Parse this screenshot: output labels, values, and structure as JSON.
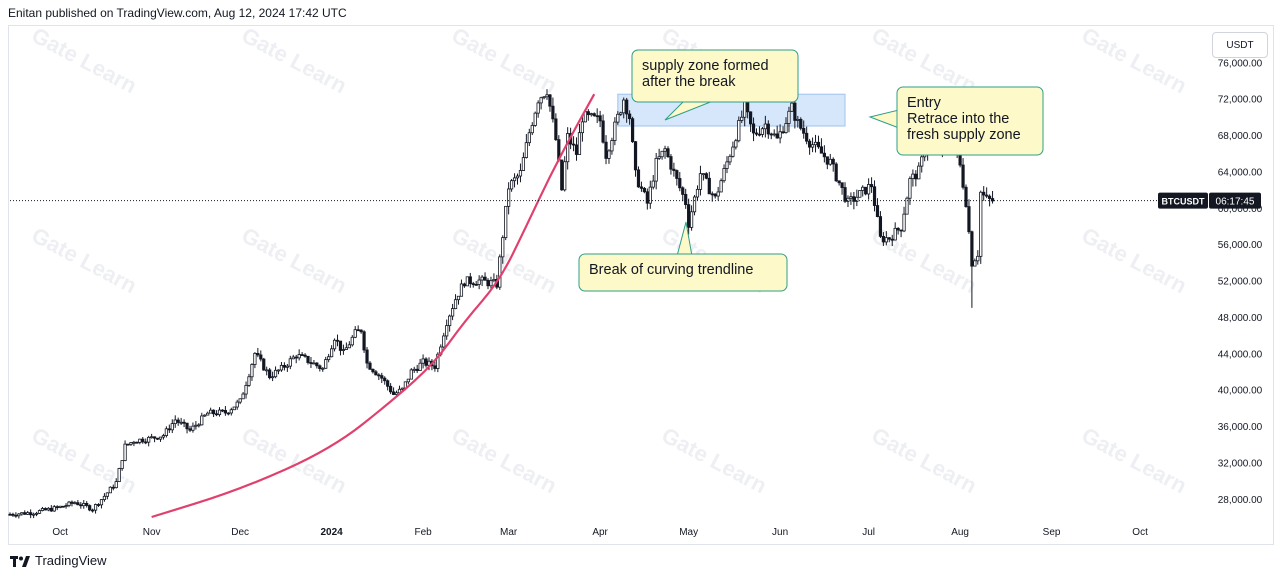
{
  "header": {
    "publisher_line": "Enitan published on TradingView.com, Aug 12, 2024 17:42 UTC"
  },
  "currency_button": "USDT",
  "footer": {
    "brand": "TradingView"
  },
  "watermark_text": "Gate Learn",
  "chart_data": {
    "type": "candlestick",
    "symbol_badge": "BTCUSDT",
    "countdown_badge": "06:17:45",
    "current_price": 60800,
    "ylim": [
      26000,
      80000
    ],
    "y_ticks": [
      "76,000.00",
      "72,000.00",
      "68,000.00",
      "64,000.00",
      "60,000.00",
      "56,000.00",
      "52,000.00",
      "48,000.00",
      "44,000.00",
      "40,000.00",
      "36,000.00",
      "32,000.00",
      "28,000.00"
    ],
    "y_tick_values": [
      76000,
      72000,
      68000,
      64000,
      60000,
      56000,
      52000,
      48000,
      44000,
      40000,
      36000,
      32000,
      28000
    ],
    "x_ticks": [
      "Oct",
      "Nov",
      "Dec",
      "2024",
      "Feb",
      "Mar",
      "Apr",
      "May",
      "Jun",
      "Jul",
      "Aug",
      "Sep",
      "Oct"
    ],
    "x_range": [
      "2023-09-14",
      "2024-10-23"
    ],
    "x_tick_dates": [
      "2023-10-01",
      "2023-11-01",
      "2023-12-01",
      "2024-01-01",
      "2024-02-01",
      "2024-03-01",
      "2024-04-01",
      "2024-05-01",
      "2024-06-01",
      "2024-07-01",
      "2024-08-01",
      "2024-09-01",
      "2024-10-01"
    ],
    "price_path": [
      [
        "2023-09-14",
        26300
      ],
      [
        "2023-09-22",
        26500
      ],
      [
        "2023-09-30",
        27000
      ],
      [
        "2023-10-06",
        27600
      ],
      [
        "2023-10-12",
        26900
      ],
      [
        "2023-10-16",
        28300
      ],
      [
        "2023-10-20",
        29800
      ],
      [
        "2023-10-23",
        33800
      ],
      [
        "2023-10-26",
        34400
      ],
      [
        "2023-10-31",
        34600
      ],
      [
        "2023-11-05",
        35000
      ],
      [
        "2023-11-09",
        36700
      ],
      [
        "2023-11-14",
        35500
      ],
      [
        "2023-11-20",
        37400
      ],
      [
        "2023-11-26",
        37500
      ],
      [
        "2023-12-01",
        38700
      ],
      [
        "2023-12-04",
        41800
      ],
      [
        "2023-12-06",
        44000
      ],
      [
        "2023-12-11",
        41500
      ],
      [
        "2023-12-15",
        42300
      ],
      [
        "2023-12-20",
        43800
      ],
      [
        "2023-12-24",
        43200
      ],
      [
        "2023-12-29",
        42300
      ],
      [
        "2024-01-02",
        45800
      ],
      [
        "2024-01-05",
        44000
      ],
      [
        "2024-01-09",
        46200
      ],
      [
        "2024-01-11",
        46600
      ],
      [
        "2024-01-13",
        42900
      ],
      [
        "2024-01-18",
        41300
      ],
      [
        "2024-01-22",
        39500
      ],
      [
        "2024-01-25",
        40000
      ],
      [
        "2024-01-28",
        42000
      ],
      [
        "2024-02-01",
        43000
      ],
      [
        "2024-02-05",
        42600
      ],
      [
        "2024-02-09",
        47500
      ],
      [
        "2024-02-12",
        50000
      ],
      [
        "2024-02-15",
        51900
      ],
      [
        "2024-02-20",
        52000
      ],
      [
        "2024-02-26",
        51600
      ],
      [
        "2024-02-28",
        57000
      ],
      [
        "2024-03-01",
        62300
      ],
      [
        "2024-03-05",
        63800
      ],
      [
        "2024-03-08",
        68300
      ],
      [
        "2024-03-11",
        72000
      ],
      [
        "2024-03-14",
        73000
      ],
      [
        "2024-03-17",
        67500
      ],
      [
        "2024-03-19",
        62000
      ],
      [
        "2024-03-21",
        67800
      ],
      [
        "2024-03-24",
        66000
      ],
      [
        "2024-03-26",
        70000
      ],
      [
        "2024-03-29",
        69800
      ],
      [
        "2024-04-01",
        69600
      ],
      [
        "2024-04-03",
        65900
      ],
      [
        "2024-04-06",
        68900
      ],
      [
        "2024-04-09",
        72000
      ],
      [
        "2024-04-11",
        70000
      ],
      [
        "2024-04-13",
        63600
      ],
      [
        "2024-04-17",
        60500
      ],
      [
        "2024-04-20",
        64900
      ],
      [
        "2024-04-23",
        66400
      ],
      [
        "2024-04-27",
        63000
      ],
      [
        "2024-04-30",
        60600
      ],
      [
        "2024-05-01",
        58300
      ],
      [
        "2024-05-05",
        63800
      ],
      [
        "2024-05-10",
        61000
      ],
      [
        "2024-05-15",
        66000
      ],
      [
        "2024-05-20",
        71000
      ],
      [
        "2024-05-23",
        68000
      ],
      [
        "2024-05-27",
        69200
      ],
      [
        "2024-05-31",
        67500
      ],
      [
        "2024-06-05",
        71000
      ],
      [
        "2024-06-07",
        69300
      ],
      [
        "2024-06-11",
        67300
      ],
      [
        "2024-06-15",
        66000
      ],
      [
        "2024-06-18",
        65000
      ],
      [
        "2024-06-24",
        60500
      ],
      [
        "2024-06-28",
        61500
      ],
      [
        "2024-07-02",
        62500
      ],
      [
        "2024-07-05",
        56600
      ],
      [
        "2024-07-08",
        56700
      ],
      [
        "2024-07-12",
        57900
      ],
      [
        "2024-07-15",
        63000
      ],
      [
        "2024-07-18",
        64000
      ],
      [
        "2024-07-21",
        67500
      ],
      [
        "2024-07-24",
        66000
      ],
      [
        "2024-07-27",
        67900
      ],
      [
        "2024-07-29",
        68000
      ],
      [
        "2024-08-01",
        64600
      ],
      [
        "2024-08-03",
        60700
      ],
      [
        "2024-08-05",
        54000
      ],
      [
        "2024-08-07",
        55000
      ],
      [
        "2024-08-08",
        61700
      ],
      [
        "2024-08-10",
        60900
      ],
      [
        "2024-08-12",
        60800
      ]
    ],
    "trendline_points": [
      [
        "2023-11-01",
        26000
      ],
      [
        "2023-12-01",
        29000
      ],
      [
        "2024-01-01",
        33500
      ],
      [
        "2024-01-22",
        38900
      ],
      [
        "2024-02-05",
        43000
      ],
      [
        "2024-02-15",
        47500
      ],
      [
        "2024-02-27",
        52000
      ],
      [
        "2024-03-07",
        58000
      ],
      [
        "2024-03-15",
        63500
      ],
      [
        "2024-03-24",
        69000
      ],
      [
        "2024-03-30",
        72500
      ]
    ],
    "supply_zone": {
      "x0": "2024-04-07",
      "x1": "2024-06-23",
      "y0": 69000,
      "y1": 72500
    },
    "annotations": [
      {
        "text_lines": [
          "supply zone formed",
          "after the break"
        ]
      },
      {
        "text_lines": [
          "Entry",
          "Retrace into the",
          "fresh supply zone"
        ]
      },
      {
        "text_lines": [
          "Break of curving trendline"
        ]
      }
    ],
    "colors": {
      "candle": "#131722",
      "trendline": "#e0406e",
      "zone_fill": "#cfe3fb",
      "zone_stroke": "#90b8ec",
      "note_fill": "#fdf9c8",
      "note_stroke": "#2e9e8a"
    }
  }
}
